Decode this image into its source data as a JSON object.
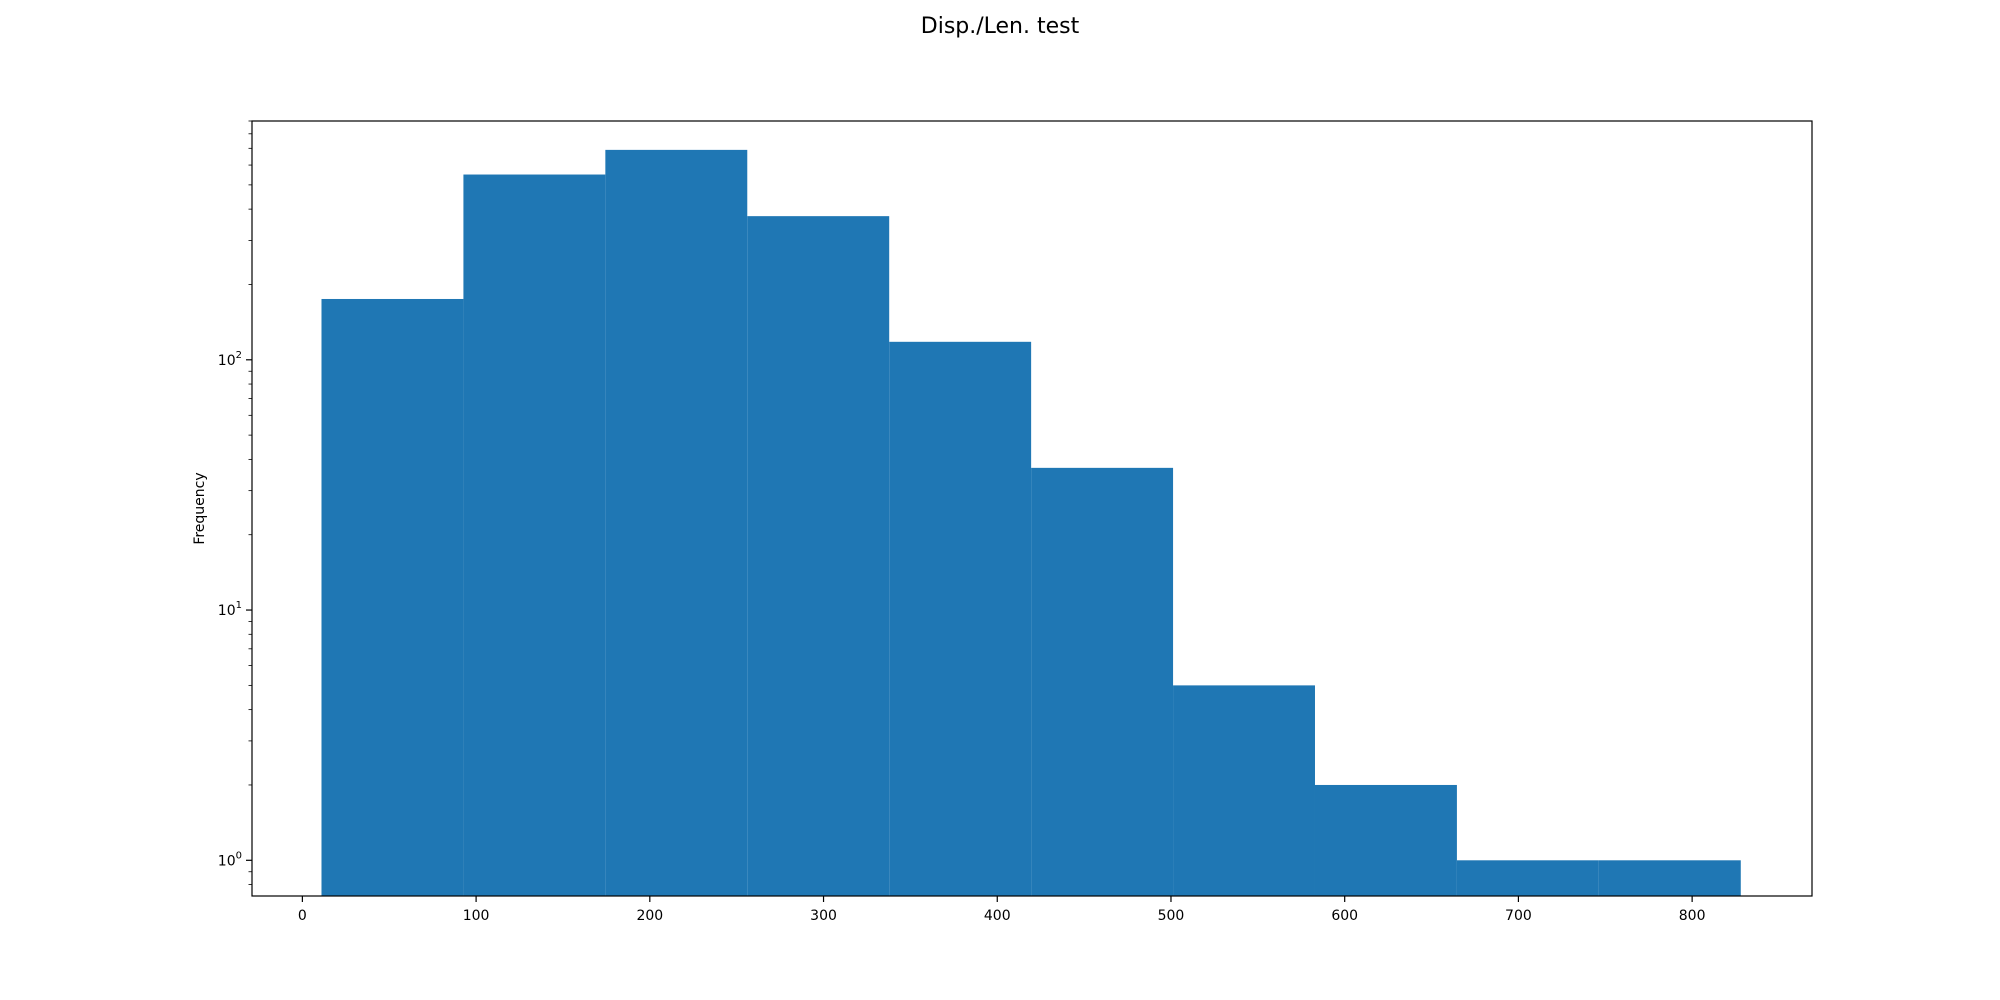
{
  "chart_data": {
    "type": "bar",
    "subtype": "histogram",
    "title": "Disp./Len. test",
    "xlabel": "",
    "ylabel": "Frequency",
    "yscale": "log",
    "bin_edges": [
      11,
      92.7,
      174.4,
      256.1,
      337.8,
      419.5,
      501.2,
      582.9,
      664.6,
      746.3,
      828
    ],
    "values": [
      175,
      550,
      690,
      375,
      118,
      37,
      5,
      2,
      1,
      1
    ],
    "xlim": [
      -29,
      869
    ],
    "ylim": [
      0.72,
      900
    ],
    "x_ticks": [
      0,
      100,
      200,
      300,
      400,
      500,
      600,
      700,
      800
    ],
    "y_ticks": [
      {
        "value": 1,
        "base": "10",
        "exp": "0"
      },
      {
        "value": 10,
        "base": "10",
        "exp": "1"
      },
      {
        "value": 100,
        "base": "10",
        "exp": "2"
      }
    ],
    "bar_color": "#1f77b4",
    "grid": false,
    "legend": "none"
  }
}
